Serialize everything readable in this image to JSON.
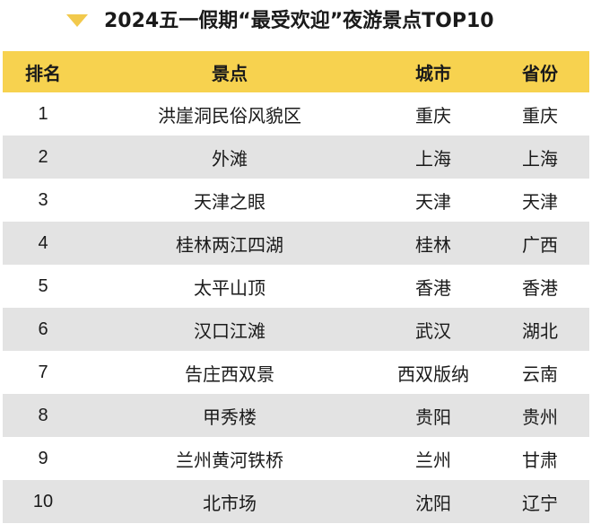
{
  "title": {
    "text": "2024五一假期“最受欢迎”夜游景点TOP10",
    "arrow_icon": "triangle-down",
    "accent_color": "#f2c94c"
  },
  "table": {
    "header_color": "#f7d24f",
    "stripe_color": "#e3e3e3",
    "headers": {
      "rank": "排名",
      "spot": "景点",
      "city": "城市",
      "province": "省份"
    },
    "rows": [
      {
        "rank": "1",
        "spot": "洪崖洞民俗风貌区",
        "city": "重庆",
        "province": "重庆"
      },
      {
        "rank": "2",
        "spot": "外滩",
        "city": "上海",
        "province": "上海"
      },
      {
        "rank": "3",
        "spot": "天津之眼",
        "city": "天津",
        "province": "天津"
      },
      {
        "rank": "4",
        "spot": "桂林两江四湖",
        "city": "桂林",
        "province": "广西"
      },
      {
        "rank": "5",
        "spot": "太平山顶",
        "city": "香港",
        "province": "香港"
      },
      {
        "rank": "6",
        "spot": "汉口江滩",
        "city": "武汉",
        "province": "湖北"
      },
      {
        "rank": "7",
        "spot": "告庄西双景",
        "city": "西双版纳",
        "province": "云南"
      },
      {
        "rank": "8",
        "spot": "甲秀楼",
        "city": "贵阳",
        "province": "贵州"
      },
      {
        "rank": "9",
        "spot": "兰州黄河铁桥",
        "city": "兰州",
        "province": "甘肃"
      },
      {
        "rank": "10",
        "spot": "北市场",
        "city": "沈阳",
        "province": "辽宁"
      }
    ]
  }
}
